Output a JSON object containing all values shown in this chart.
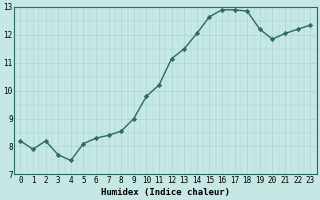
{
  "x": [
    0,
    1,
    2,
    3,
    4,
    5,
    6,
    7,
    8,
    9,
    10,
    11,
    12,
    13,
    14,
    15,
    16,
    17,
    18,
    19,
    20,
    21,
    22,
    23
  ],
  "y": [
    8.2,
    7.9,
    8.2,
    7.7,
    7.5,
    8.1,
    8.3,
    8.4,
    8.55,
    9.0,
    9.8,
    10.2,
    11.15,
    11.5,
    12.05,
    12.65,
    12.9,
    12.9,
    12.85,
    12.2,
    11.85,
    12.05,
    12.2,
    12.35
  ],
  "line_color": "#2d6b5e",
  "marker": "D",
  "marker_size": 2.2,
  "bg_color": "#c5e8e5",
  "grid_color": "#aed4d0",
  "grid_major_color": "#c0d8d5",
  "xlabel": "Humidex (Indice chaleur)",
  "ylim": [
    7,
    13
  ],
  "xlim": [
    -0.5,
    23.5
  ],
  "yticks": [
    7,
    8,
    9,
    10,
    11,
    12,
    13
  ],
  "xticks": [
    0,
    1,
    2,
    3,
    4,
    5,
    6,
    7,
    8,
    9,
    10,
    11,
    12,
    13,
    14,
    15,
    16,
    17,
    18,
    19,
    20,
    21,
    22,
    23
  ],
  "tick_fontsize": 5.5,
  "xlabel_fontsize": 6.5,
  "line_width": 1.0
}
